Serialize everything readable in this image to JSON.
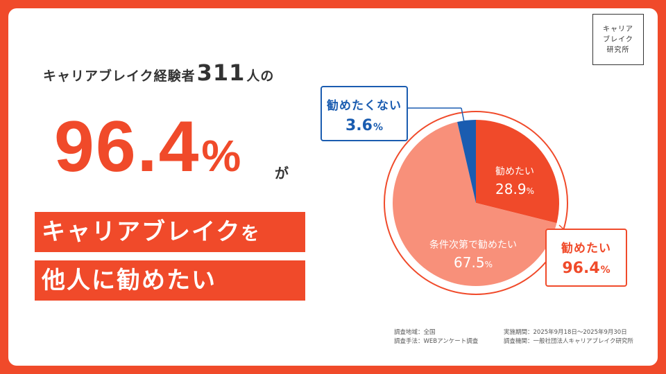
{
  "logo": {
    "line1": "キャリア",
    "line2": "ブレイク",
    "line3": "研究所"
  },
  "headline": {
    "prefix": "キャリアブレイク経験者",
    "number": "311",
    "suffix": "人の"
  },
  "big_stat": {
    "value": "96.4",
    "unit": "%"
  },
  "ga": "が",
  "banner": {
    "line1": "キャリアブレイク",
    "line1_tail": "を",
    "line2": "他人に勧めたい"
  },
  "callout_blue": {
    "label": "勧めたくない",
    "value": "3.6",
    "unit": "%"
  },
  "callout_red": {
    "label": "勧めたい",
    "value": "96.4",
    "unit": "%"
  },
  "footnotes": {
    "left1": "調査地域：全国",
    "left2": "調査手法：WEBアンケート調査",
    "right1": "実施期間：2025年9月18日～2025年9月30日",
    "right2": "調査機関：一般社団法人キャリアブレイク研究所"
  },
  "colors": {
    "accent": "#f04a2a",
    "light": "#f8907a",
    "blue": "#1a5cb0"
  },
  "chart_data": {
    "type": "pie",
    "slices": [
      {
        "label": "勧めたい",
        "value": 28.9,
        "display": "28.9",
        "unit": "%",
        "color": "#f04a2a"
      },
      {
        "label": "条件次第で勧めたい",
        "value": 67.5,
        "display": "67.5",
        "unit": "%",
        "color": "#f8907a"
      },
      {
        "label": "勧めたくない",
        "value": 3.6,
        "display": "3.6",
        "unit": "%",
        "color": "#1a5cb0"
      }
    ]
  }
}
